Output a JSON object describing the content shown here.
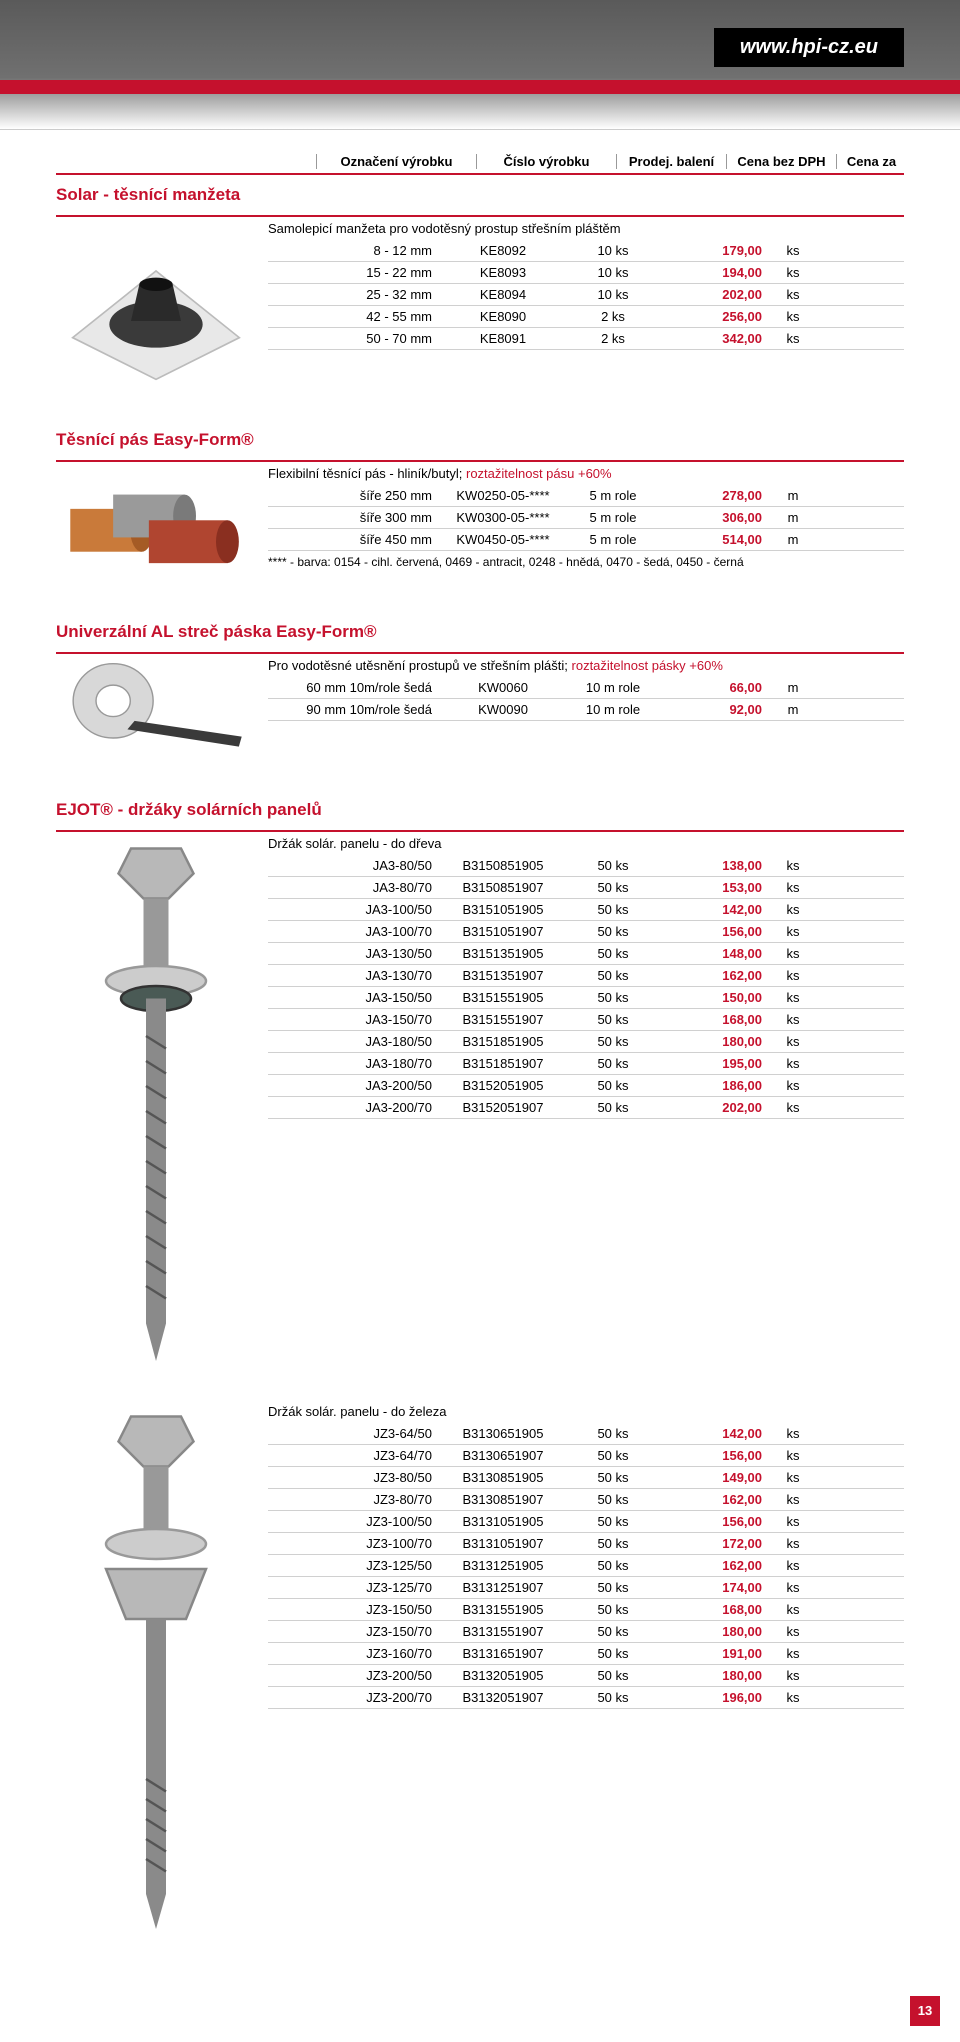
{
  "website": "www.hpi-cz.eu",
  "page_number": "13",
  "headers": {
    "col1": "Označení výrobku",
    "col2": "Číslo výrobku",
    "col3": "Prodej. balení",
    "col4": "Cena bez DPH",
    "col5": "Cena za"
  },
  "colors": {
    "accent": "#c5112d",
    "text": "#000000",
    "background": "#ffffff"
  },
  "sections": [
    {
      "title": "Solar - těsnící manžeta",
      "subtitle_plain": "Samolepicí manžeta pro vodotěsný prostup střešním pláštěm",
      "subtitle_highlight": "",
      "rows": [
        {
          "name": "8 - 12 mm",
          "code": "KE8092",
          "pack": "10 ks",
          "price": "179,00",
          "unit": "ks"
        },
        {
          "name": "15 - 22 mm",
          "code": "KE8093",
          "pack": "10 ks",
          "price": "194,00",
          "unit": "ks"
        },
        {
          "name": "25 - 32 mm",
          "code": "KE8094",
          "pack": "10 ks",
          "price": "202,00",
          "unit": "ks"
        },
        {
          "name": "42 - 55 mm",
          "code": "KE8090",
          "pack": "2 ks",
          "price": "256,00",
          "unit": "ks"
        },
        {
          "name": "50 - 70 mm",
          "code": "KE8091",
          "pack": "2 ks",
          "price": "342,00",
          "unit": "ks"
        }
      ],
      "footnote": ""
    },
    {
      "title": "Těsnící pás Easy-Form®",
      "subtitle_plain": "Flexibilní těsnící pás - hliník/butyl; ",
      "subtitle_highlight": "roztažitelnost pásu +60%",
      "rows": [
        {
          "name": "šíře 250 mm",
          "code": "KW0250-05-****",
          "pack": "5 m role",
          "price": "278,00",
          "unit": "m"
        },
        {
          "name": "šíře 300 mm",
          "code": "KW0300-05-****",
          "pack": "5 m role",
          "price": "306,00",
          "unit": "m"
        },
        {
          "name": "šíře 450 mm",
          "code": "KW0450-05-****",
          "pack": "5 m role",
          "price": "514,00",
          "unit": "m"
        }
      ],
      "footnote": "**** - barva: 0154 - cihl. červená, 0469 - antracit, 0248 - hnědá, 0470 - šedá, 0450 - černá"
    },
    {
      "title": "Univerzální AL streč páska Easy-Form®",
      "subtitle_plain": "Pro vodotěsné utěsnění prostupů ve střešním plášti; ",
      "subtitle_highlight": "roztažitelnost pásky +60%",
      "rows": [
        {
          "name": "60 mm 10m/role šedá",
          "code": "KW0060",
          "pack": "10 m role",
          "price": "66,00",
          "unit": "m"
        },
        {
          "name": "90 mm 10m/role šedá",
          "code": "KW0090",
          "pack": "10 m role",
          "price": "92,00",
          "unit": "m"
        }
      ],
      "footnote": ""
    },
    {
      "title": "EJOT® - držáky solárních panelů",
      "subtitle_plain": "Držák solár. panelu - do dřeva",
      "subtitle_highlight": "",
      "rows": [
        {
          "name": "JA3-80/50",
          "code": "B3150851905",
          "pack": "50 ks",
          "price": "138,00",
          "unit": "ks"
        },
        {
          "name": "JA3-80/70",
          "code": "B3150851907",
          "pack": "50 ks",
          "price": "153,00",
          "unit": "ks"
        },
        {
          "name": "JA3-100/50",
          "code": "B3151051905",
          "pack": "50 ks",
          "price": "142,00",
          "unit": "ks"
        },
        {
          "name": "JA3-100/70",
          "code": "B3151051907",
          "pack": "50 ks",
          "price": "156,00",
          "unit": "ks"
        },
        {
          "name": "JA3-130/50",
          "code": "B3151351905",
          "pack": "50 ks",
          "price": "148,00",
          "unit": "ks"
        },
        {
          "name": "JA3-130/70",
          "code": "B3151351907",
          "pack": "50 ks",
          "price": "162,00",
          "unit": "ks"
        },
        {
          "name": "JA3-150/50",
          "code": "B3151551905",
          "pack": "50 ks",
          "price": "150,00",
          "unit": "ks"
        },
        {
          "name": "JA3-150/70",
          "code": "B3151551907",
          "pack": "50 ks",
          "price": "168,00",
          "unit": "ks"
        },
        {
          "name": "JA3-180/50",
          "code": "B3151851905",
          "pack": "50 ks",
          "price": "180,00",
          "unit": "ks"
        },
        {
          "name": "JA3-180/70",
          "code": "B3151851907",
          "pack": "50 ks",
          "price": "195,00",
          "unit": "ks"
        },
        {
          "name": "JA3-200/50",
          "code": "B3152051905",
          "pack": "50 ks",
          "price": "186,00",
          "unit": "ks"
        },
        {
          "name": "JA3-200/70",
          "code": "B3152051907",
          "pack": "50 ks",
          "price": "202,00",
          "unit": "ks"
        }
      ],
      "footnote": ""
    },
    {
      "title": "",
      "subtitle_plain": "Držák solár. panelu - do železa",
      "subtitle_highlight": "",
      "rows": [
        {
          "name": "JZ3-64/50",
          "code": "B3130651905",
          "pack": "50 ks",
          "price": "142,00",
          "unit": "ks"
        },
        {
          "name": "JZ3-64/70",
          "code": "B3130651907",
          "pack": "50 ks",
          "price": "156,00",
          "unit": "ks"
        },
        {
          "name": "JZ3-80/50",
          "code": "B3130851905",
          "pack": "50 ks",
          "price": "149,00",
          "unit": "ks"
        },
        {
          "name": "JZ3-80/70",
          "code": "B3130851907",
          "pack": "50 ks",
          "price": "162,00",
          "unit": "ks"
        },
        {
          "name": "JZ3-100/50",
          "code": "B3131051905",
          "pack": "50 ks",
          "price": "156,00",
          "unit": "ks"
        },
        {
          "name": "JZ3-100/70",
          "code": "B3131051907",
          "pack": "50 ks",
          "price": "172,00",
          "unit": "ks"
        },
        {
          "name": "JZ3-125/50",
          "code": "B3131251905",
          "pack": "50 ks",
          "price": "162,00",
          "unit": "ks"
        },
        {
          "name": "JZ3-125/70",
          "code": "B3131251907",
          "pack": "50 ks",
          "price": "174,00",
          "unit": "ks"
        },
        {
          "name": "JZ3-150/50",
          "code": "B3131551905",
          "pack": "50 ks",
          "price": "168,00",
          "unit": "ks"
        },
        {
          "name": "JZ3-150/70",
          "code": "B3131551907",
          "pack": "50 ks",
          "price": "180,00",
          "unit": "ks"
        },
        {
          "name": "JZ3-160/70",
          "code": "B3131651907",
          "pack": "50 ks",
          "price": "191,00",
          "unit": "ks"
        },
        {
          "name": "JZ3-200/50",
          "code": "B3132051905",
          "pack": "50 ks",
          "price": "180,00",
          "unit": "ks"
        },
        {
          "name": "JZ3-200/70",
          "code": "B3132051907",
          "pack": "50 ks",
          "price": "196,00",
          "unit": "ks"
        }
      ],
      "footnote": ""
    }
  ],
  "product_svgs": {
    "0": "collar",
    "1": "rolls",
    "2": "tape",
    "3": "screw-wood",
    "4": "screw-steel"
  }
}
